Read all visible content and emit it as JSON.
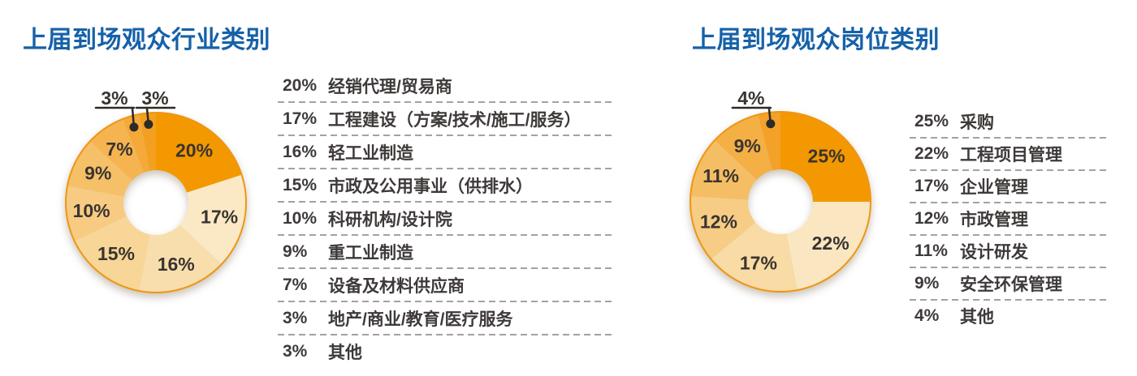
{
  "colors": {
    "background": "#FFFFFF",
    "title": "#1661A8",
    "text": "#3E3A39",
    "separator": "#A5A29E",
    "donut_outline": "#EE9614",
    "callout": "#2E2A27",
    "primary_orange": "#F39800"
  },
  "chart_data": [
    {
      "type": "pie",
      "donut": true,
      "title": "上届到场观众行业类别",
      "categories": [
        "经销代理/贸易商",
        "工程建设（方案/技术/施工/服务）",
        "轻工业制造",
        "市政及公用事业（供排水）",
        "科研机构/设计院",
        "重工业制造",
        "设备及材料供应商",
        "地产/商业/教育/医疗服务",
        "其他"
      ],
      "values": [
        20,
        17,
        16,
        15,
        10,
        9,
        7,
        3,
        3
      ],
      "labels": [
        "20%",
        "17%",
        "16%",
        "15%",
        "10%",
        "9%",
        "7%",
        "3%",
        "3%"
      ],
      "slice_colors": [
        "#F39800",
        "#FBE9C6",
        "#F9DEAD",
        "#F8D697",
        "#F7CB82",
        "#F6C069",
        "#F5B450",
        "#F4A938",
        "#F3A021"
      ],
      "callouts": [
        7,
        8
      ],
      "legend_position": "right",
      "start_angle_deg": 0,
      "direction": "clockwise"
    },
    {
      "type": "pie",
      "donut": true,
      "title": "上届到场观众岗位类别",
      "categories": [
        "采购",
        "工程项目管理",
        "企业管理",
        "市政管理",
        "设计研发",
        "安全环保管理",
        "其他"
      ],
      "values": [
        25,
        22,
        17,
        12,
        11,
        9,
        4
      ],
      "labels": [
        "25%",
        "22%",
        "17%",
        "12%",
        "11%",
        "9%",
        "4%"
      ],
      "slice_colors": [
        "#F39800",
        "#FAE7C2",
        "#F8DBA5",
        "#F7CC85",
        "#F5BE64",
        "#F4AF45",
        "#F3A129"
      ],
      "callouts": [
        6
      ],
      "legend_position": "right",
      "start_angle_deg": 0,
      "direction": "clockwise"
    }
  ]
}
